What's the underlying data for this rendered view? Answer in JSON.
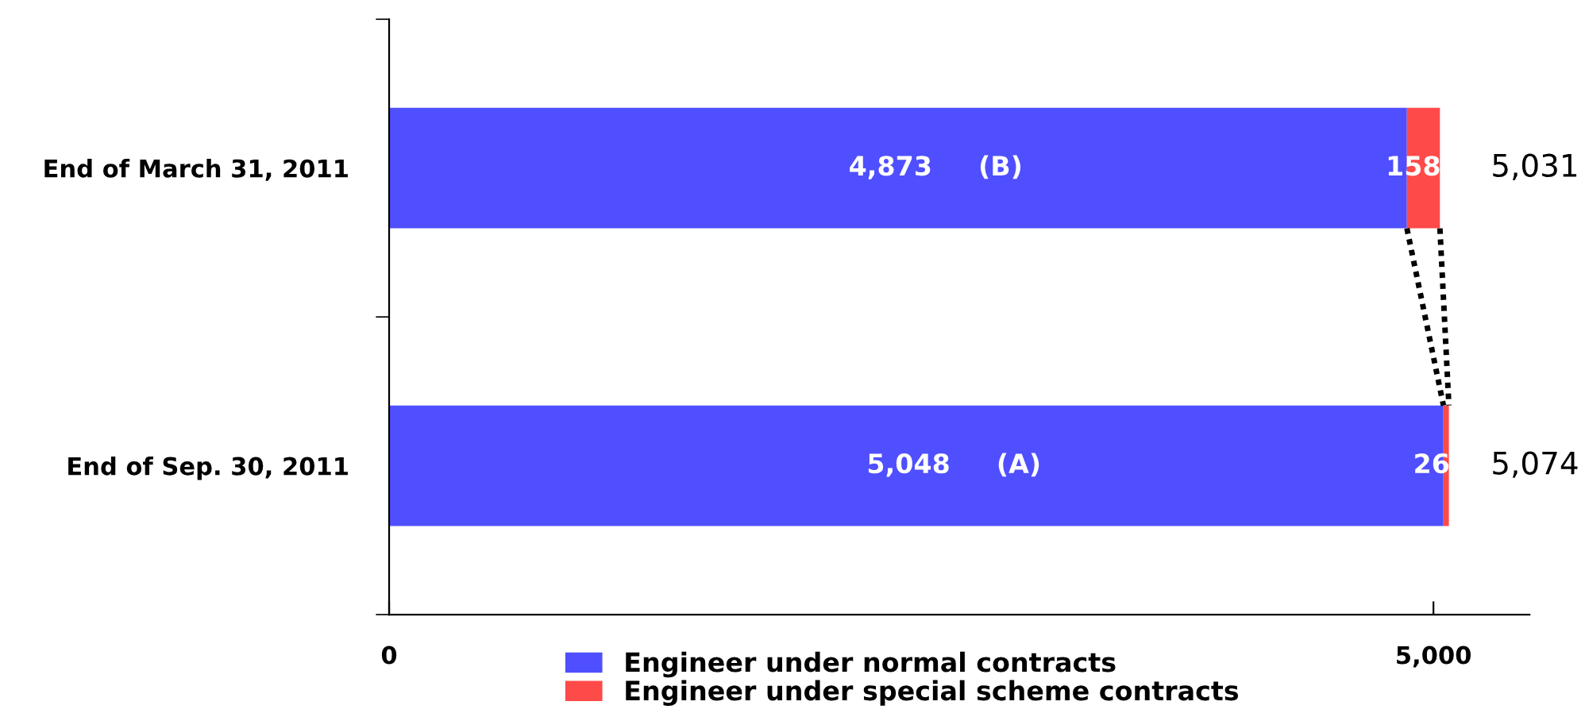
{
  "chart_data": {
    "type": "bar",
    "orientation": "horizontal",
    "stacked": true,
    "categories": [
      "End of March 31, 2011",
      "End of Sep. 30, 2011"
    ],
    "series": [
      {
        "name": "Engineer under normal contracts",
        "color": "#4f4fff",
        "values": [
          4873,
          5048
        ],
        "value_labels": [
          "4,873     (B)",
          "5,048     (A)"
        ]
      },
      {
        "name": "Engineer under special scheme contracts",
        "color": "#ff4a4a",
        "values": [
          158,
          26
        ],
        "value_labels": [
          "158",
          "26"
        ]
      }
    ],
    "totals": [
      "5,031",
      "5,074"
    ],
    "xlim": [
      0,
      5460
    ],
    "xticks": [
      {
        "value": 0,
        "label": "0"
      },
      {
        "value": 5000,
        "label": "5,000"
      }
    ],
    "grid": false,
    "legend": "bottom"
  }
}
